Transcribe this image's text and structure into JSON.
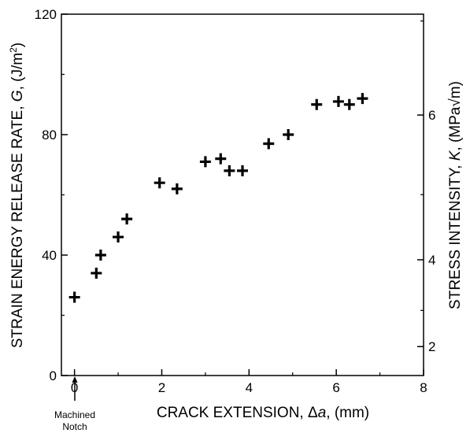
{
  "chart_data": {
    "type": "scatter",
    "marker": "plus",
    "grid": false,
    "xlabel": "CRACK EXTENSION, Δa, (mm)",
    "xlabel_parts": [
      "CRACK EXTENSION, Δ",
      "a",
      ", (mm)"
    ],
    "ylabel": "STRAIN ENERGY RELEASE RATE, G, (J/m²)",
    "ylabel_parts": [
      "STRAIN ENERGY RELEASE RATE, ",
      "G",
      ", (J/m",
      "2",
      ")"
    ],
    "y2label": "STRESS INTENSITY, K, (MPa√m)",
    "y2label_parts": [
      "STRESS INTENSITY, ",
      "K",
      ", (MPa√m)"
    ],
    "xlim": [
      -0.3,
      8
    ],
    "ylim": [
      0,
      120
    ],
    "xticks": [
      "0",
      "2",
      "4",
      "6",
      "8"
    ],
    "yticks": [
      "0",
      "40",
      "80",
      "120"
    ],
    "y2ticks": [
      "2",
      "4",
      "6"
    ],
    "annotation": [
      "Machined",
      "Notch"
    ],
    "series": [
      {
        "x": [
          0,
          0.5,
          0.6,
          1.0,
          1.2,
          1.95,
          2.35,
          3.0,
          3.35,
          3.55,
          3.85,
          4.45,
          4.9,
          5.55,
          6.05,
          6.3,
          6.6
        ],
        "y": [
          26,
          34,
          40,
          46,
          52,
          64,
          62,
          71,
          72,
          68,
          68,
          77,
          80,
          90,
          91,
          90,
          92
        ]
      }
    ]
  }
}
